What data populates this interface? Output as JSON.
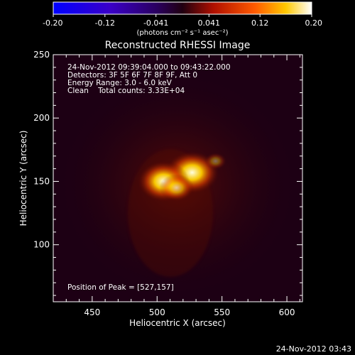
{
  "colorbar": {
    "tick_labels": [
      "-0.20",
      "-0.12",
      "-0.041",
      "0.041",
      "0.12",
      "0.20"
    ],
    "unit_label": "(photons cm⁻² s⁻¹ asec⁻²)",
    "range": [
      -0.2,
      0.2
    ]
  },
  "chart_data": {
    "type": "heatmap",
    "title": "Reconstructed RHESSI Image",
    "xlabel": "Heliocentric X (arcsec)",
    "ylabel": "Heliocentric Y (arcsec)",
    "xlim": [
      420,
      612
    ],
    "ylim": [
      55,
      250
    ],
    "xticks": [
      "450",
      "500",
      "550",
      "600"
    ],
    "yticks": [
      "100",
      "150",
      "200",
      "250"
    ],
    "annotations": [
      "24-Nov-2012 09:39:04.000 to 09:43:22.000",
      "Detectors: 3F 5F 6F 7F 8F 9F, Att 0",
      "Energy Range: 3.0 - 6.0 keV",
      "Clean    Total counts: 3.33E+04"
    ],
    "peak_label": "Position of Peak = [527,157]",
    "peak": [
      527,
      157
    ],
    "colormap": "hot",
    "sources": [
      {
        "x": 527,
        "y": 157,
        "intensity": 0.2
      },
      {
        "x": 505,
        "y": 150,
        "intensity": 0.19
      },
      {
        "x": 515,
        "y": 145,
        "intensity": 0.11
      },
      {
        "x": 545,
        "y": 166,
        "intensity": 0.05
      }
    ]
  },
  "footer": {
    "timestamp": "24-Nov-2012 03:43"
  }
}
